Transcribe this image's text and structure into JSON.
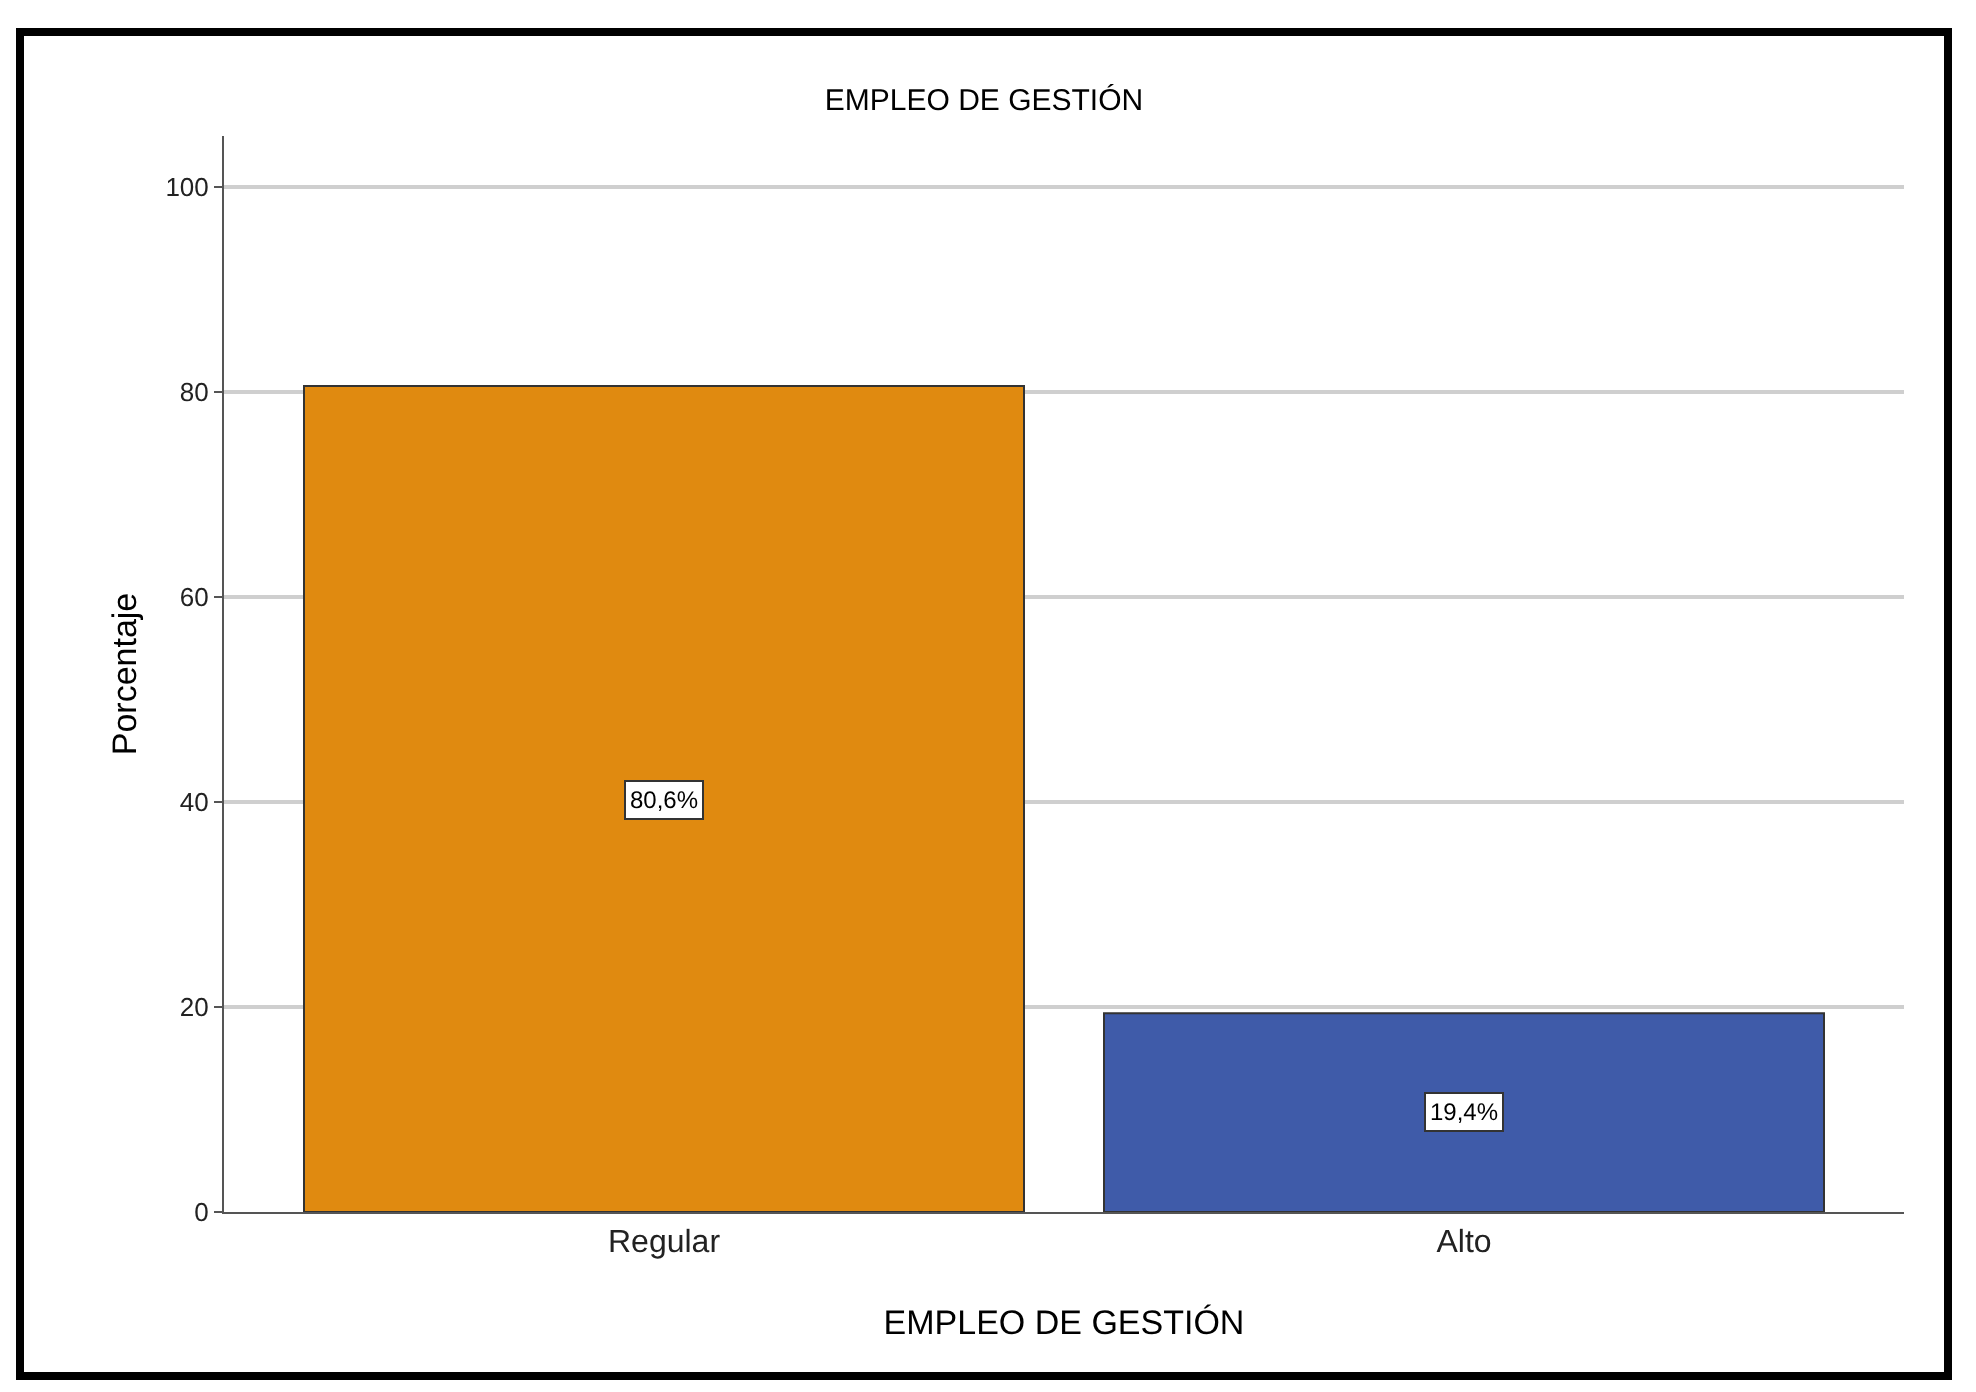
{
  "chart_data": {
    "type": "bar",
    "title": "EMPLEO DE GESTIÓN",
    "xlabel": "EMPLEO DE GESTIÓN",
    "ylabel": "Porcentaje",
    "categories": [
      "Regular",
      "Alto"
    ],
    "values": [
      80.6,
      19.4
    ],
    "value_labels": [
      "80,6%",
      "19,4%"
    ],
    "colors": [
      "#e08a10",
      "#3f5ba9"
    ],
    "ylim": [
      0,
      105
    ],
    "yticks": [
      0,
      20,
      40,
      60,
      80,
      100
    ],
    "grid": "y"
  }
}
